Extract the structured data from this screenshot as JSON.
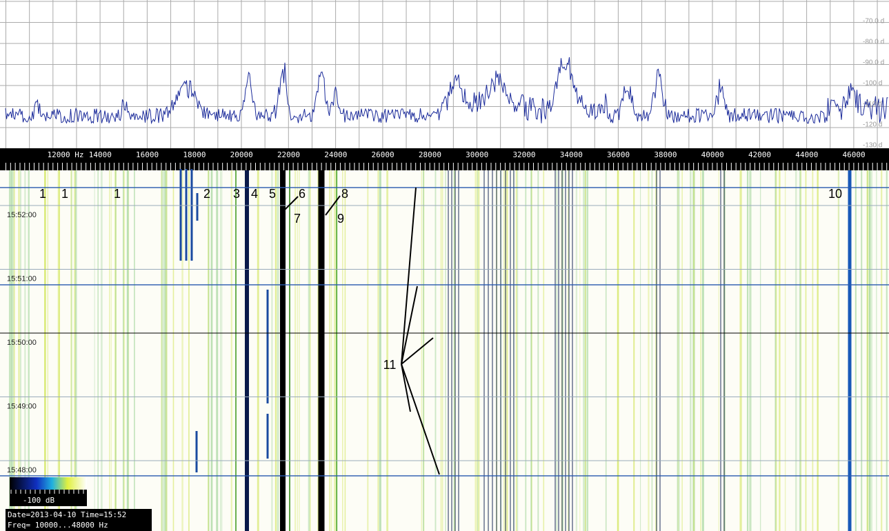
{
  "spectrum": {
    "db_labels": [
      "-70.0 d",
      "-80.0 d",
      "-90.0 d",
      "-100 d",
      "-110 d",
      "-120 d",
      "-130 d"
    ]
  },
  "frequency_axis": {
    "labels": [
      "12000 Hz",
      "14000",
      "16000",
      "18000",
      "20000",
      "22000",
      "24000",
      "26000",
      "28000",
      "30000",
      "32000",
      "34000",
      "36000",
      "38000",
      "40000",
      "42000",
      "44000",
      "46000"
    ]
  },
  "waterfall": {
    "time_labels": [
      "15:52:00",
      "15:51:00",
      "15:50:00",
      "15:49:00",
      "15:48:00"
    ],
    "annotations": [
      "1",
      "1",
      "1",
      "2",
      "3",
      "4",
      "5",
      "6",
      "7",
      "8",
      "9",
      "10",
      "11"
    ]
  },
  "colorbar": {
    "label": "-100 dB"
  },
  "info": {
    "line1": "Date=2013-04-10 Time=15:52",
    "line2": "Freq= 10000...48000 Hz"
  }
}
